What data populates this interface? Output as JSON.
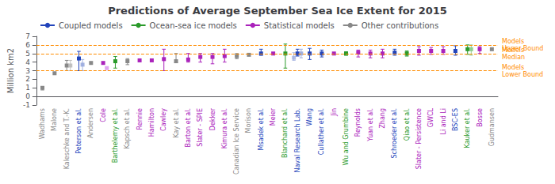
{
  "chart_data": {
    "type": "scatter",
    "title": "Predictions of Average September Sea Ice Extent for 2015",
    "ylabel": "Million km2",
    "marker": "square",
    "grid": false,
    "legend": "upper left",
    "ylim": [
      -1,
      7
    ],
    "yticks": [
      -1,
      0,
      1,
      2,
      3,
      4,
      5,
      6,
      7
    ],
    "categories": [
      "Wadhams",
      "Malone",
      "Kaleschke and T.-K.",
      "Peterson et al.",
      "Andersen",
      "Cole",
      "Barthelemy et al.",
      "Kapsch et al.",
      "Rennie",
      "Hamilton",
      "Cawley",
      "Kay et al.",
      "Barton et al.",
      "Slater - SPIE",
      "Dekker",
      "Kimura et al.",
      "Canadian Ice Service",
      "Morison",
      "Msadek et al.",
      "Meier",
      "Blanchard et al.",
      "Naval Research Lab.",
      "Wang",
      "Cullather et al.",
      "Jin",
      "Wu and Grumbine",
      "Reynolds",
      "Yuan et al.",
      "Zhang",
      "Schroeder et al.",
      "Qiao et al.",
      "Slater - Persistence",
      "GWCL",
      "Li and Li",
      "BSC-ES",
      "Kauker et al.",
      "Bosse",
      "Gudmansen"
    ],
    "legend_entries": [
      {
        "label": "Coupled models",
        "color": "#2244bb",
        "line_style": "solid"
      },
      {
        "label": "Ocean-sea ice models",
        "color": "#2a9a2a",
        "line_style": "solid"
      },
      {
        "label": "Statistical models",
        "color": "#aa22bb",
        "line_style": "solid"
      },
      {
        "label": "Other contributions",
        "color": "#888888",
        "line_style": "solid"
      }
    ],
    "series": [
      {
        "values": [
          1.0,
          2.7,
          3.6,
          4.42,
          3.9,
          3.9,
          4.1,
          4.1,
          4.2,
          4.2,
          4.35,
          4.1,
          4.3,
          4.6,
          4.6,
          4.7,
          4.7,
          4.85,
          5.0,
          5.0,
          5.0,
          5.0,
          5.0,
          5.0,
          5.0,
          5.0,
          5.1,
          5.0,
          5.0,
          5.1,
          5.0,
          5.3,
          5.3,
          5.3,
          5.3,
          5.5,
          5.5,
          5.5
        ],
        "lo": [
          0.75,
          null,
          3.0,
          3.0,
          null,
          null,
          3.3,
          3.7,
          null,
          null,
          3.0,
          3.95,
          4.0,
          4.0,
          3.8,
          4.0,
          4.4,
          null,
          4.8,
          null,
          3.3,
          4.7,
          4.3,
          4.6,
          null,
          4.8,
          4.6,
          4.5,
          4.5,
          4.8,
          4.7,
          4.8,
          4.9,
          4.9,
          4.8,
          4.9,
          5.0,
          null
        ],
        "hi": [
          1.15,
          null,
          4.2,
          5.25,
          null,
          null,
          4.65,
          4.4,
          null,
          null,
          5.5,
          5.0,
          5.0,
          5.0,
          5.0,
          5.5,
          5.0,
          null,
          5.5,
          null,
          6.1,
          5.5,
          5.6,
          5.4,
          null,
          5.2,
          5.4,
          5.4,
          5.5,
          5.5,
          5.3,
          5.8,
          5.7,
          5.8,
          5.9,
          6.0,
          5.8,
          null
        ],
        "colors": [
          "#888888",
          "#888888",
          "#888888",
          "#2244bb",
          "#888888",
          "#aa22bb",
          "#2a9a2a",
          "#888888",
          "#aa22bb",
          "#aa22bb",
          "#aa22bb",
          "#888888",
          "#aa22bb",
          "#aa22bb",
          "#aa22bb",
          "#aa22bb",
          "#888888",
          "#888888",
          "#2244bb",
          "#aa22bb",
          "#2a9a2a",
          "#2244bb",
          "#2244bb",
          "#2244bb",
          "#aa22bb",
          "#2a9a2a",
          "#aa22bb",
          "#aa22bb",
          "#aa22bb",
          "#2244bb",
          "#2a9a2a",
          "#aa22bb",
          "#aa22bb",
          "#aa22bb",
          "#2244bb",
          "#2a9a2a",
          "#aa22bb",
          "#888888"
        ]
      },
      {
        "values": [
          null,
          null,
          3.6,
          3.7,
          null,
          3.3,
          null,
          null,
          null,
          null,
          null,
          null,
          null,
          null,
          null,
          null,
          null,
          null,
          null,
          null,
          null,
          5.0,
          null,
          null,
          null,
          null,
          null,
          null,
          null,
          null,
          null,
          null,
          null,
          null,
          null,
          5.5,
          null,
          null
        ],
        "lo": [
          null,
          null,
          3.0,
          3.0,
          null,
          null,
          null,
          null,
          null,
          null,
          null,
          null,
          null,
          null,
          null,
          null,
          null,
          null,
          null,
          null,
          null,
          4.5,
          null,
          null,
          null,
          null,
          null,
          null,
          null,
          null,
          null,
          null,
          null,
          null,
          null,
          4.8,
          null,
          null
        ],
        "hi": [
          null,
          null,
          4.2,
          4.3,
          null,
          null,
          null,
          null,
          null,
          null,
          null,
          null,
          null,
          null,
          null,
          null,
          null,
          null,
          null,
          null,
          null,
          5.5,
          null,
          null,
          null,
          null,
          null,
          null,
          null,
          null,
          null,
          null,
          null,
          null,
          null,
          6.0,
          null,
          null
        ],
        "colors": [
          null,
          null,
          "#bbbbbb",
          "#99aade",
          null,
          "#dd99ee",
          null,
          null,
          null,
          null,
          null,
          null,
          null,
          null,
          null,
          null,
          null,
          null,
          null,
          null,
          null,
          "#99aade",
          null,
          null,
          null,
          null,
          null,
          null,
          null,
          null,
          null,
          null,
          null,
          null,
          null,
          "#88cc88",
          null,
          null
        ]
      },
      {
        "values": [
          null,
          null,
          null,
          null,
          null,
          null,
          null,
          null,
          null,
          null,
          null,
          null,
          null,
          null,
          null,
          null,
          null,
          null,
          null,
          null,
          null,
          4.5,
          null,
          null,
          null,
          null,
          null,
          null,
          null,
          null,
          null,
          null,
          null,
          null,
          null,
          null,
          null,
          null
        ],
        "lo": [
          null,
          null,
          null,
          null,
          null,
          null,
          null,
          null,
          null,
          null,
          null,
          null,
          null,
          null,
          null,
          null,
          null,
          null,
          null,
          null,
          null,
          4.2,
          null,
          null,
          null,
          null,
          null,
          null,
          null,
          null,
          null,
          null,
          null,
          null,
          null,
          null,
          null,
          null
        ],
        "hi": [
          null,
          null,
          null,
          null,
          null,
          null,
          null,
          null,
          null,
          null,
          null,
          null,
          null,
          null,
          null,
          null,
          null,
          null,
          null,
          null,
          null,
          5.1,
          null,
          null,
          null,
          null,
          null,
          null,
          null,
          null,
          null,
          null,
          null,
          null,
          null,
          null,
          null,
          null
        ],
        "colors": [
          null,
          null,
          null,
          null,
          null,
          null,
          null,
          null,
          null,
          null,
          null,
          null,
          null,
          null,
          null,
          null,
          null,
          null,
          null,
          null,
          null,
          "#99aade",
          null,
          null,
          null,
          null,
          null,
          null,
          null,
          null,
          null,
          null,
          null,
          null,
          null,
          null,
          null,
          null
        ]
      }
    ],
    "reference_lines": {
      "color": "darkorange",
      "line_style": "dashed",
      "lines": [
        {
          "value": 6.0,
          "label": "Models\nUpper Bound"
        },
        {
          "value": 5.0,
          "label": "Models\nMedian"
        },
        {
          "value": 3.0,
          "label": "Models\nLower Bound"
        }
      ]
    }
  }
}
